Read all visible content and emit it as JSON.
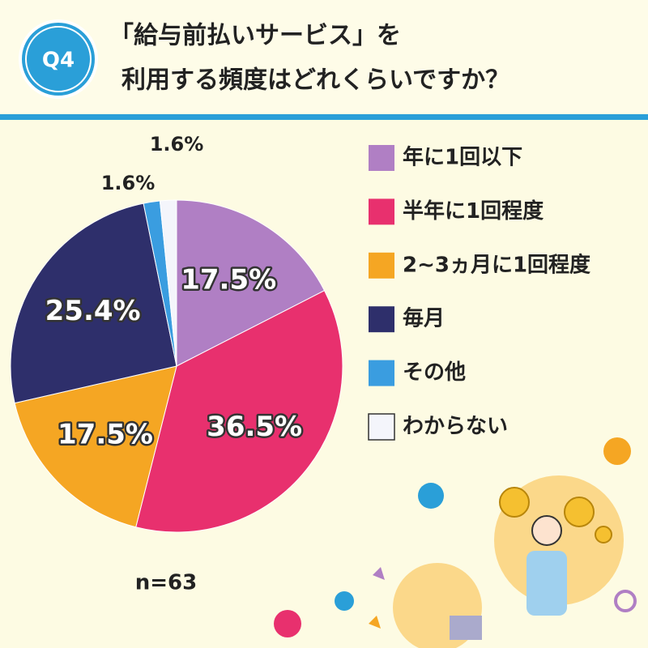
{
  "badge": "Q4",
  "chart_data": {
    "type": "pie",
    "title": [
      "「給与前払いサービス」を",
      "利用する頻度はどれくらいですか？"
    ],
    "categories": [
      "年に1回以下",
      "半年に1回程度",
      "2~3ヵ月に1回程度",
      "毎月",
      "その他",
      "わからない"
    ],
    "values": [
      17.5,
      36.5,
      17.5,
      25.4,
      1.6,
      1.6
    ],
    "value_labels": [
      "17.5%",
      "36.5%",
      "17.5%",
      "25.4%",
      "1.6%",
      "1.6%"
    ],
    "colors": [
      "#b07fc4",
      "#e8306e",
      "#f5a623",
      "#2e2f6b",
      "#3a9de0",
      "#f4f5fb"
    ],
    "legend": "right",
    "note": "n=63"
  }
}
